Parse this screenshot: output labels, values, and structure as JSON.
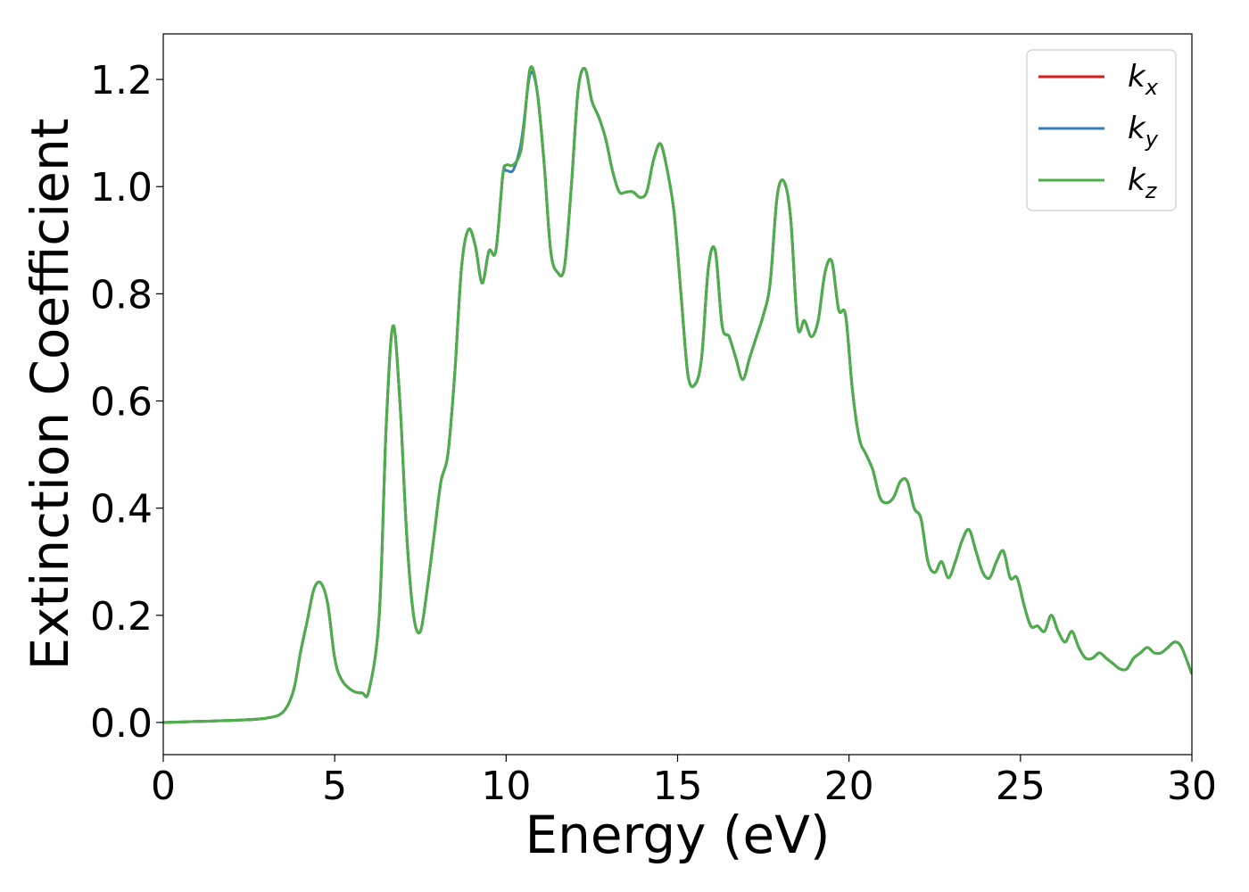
{
  "chart_data": {
    "type": "line",
    "xlabel": "Energy (eV)",
    "ylabel": "Extinction Coefficient",
    "xlim": [
      0,
      30
    ],
    "ylim": [
      -0.06,
      1.285
    ],
    "xticks": [
      0,
      5,
      10,
      15,
      20,
      25,
      30
    ],
    "xtick_labels": [
      "0",
      "5",
      "10",
      "15",
      "20",
      "25",
      "30"
    ],
    "yticks": [
      0.0,
      0.2,
      0.4,
      0.6,
      0.8,
      1.0,
      1.2
    ],
    "ytick_labels": [
      "0.0",
      "0.2",
      "0.4",
      "0.6",
      "0.8",
      "1.0",
      "1.2"
    ],
    "grid": false,
    "legend_position": "top-right",
    "series": [
      {
        "name": "k_x",
        "label_main": "k",
        "label_sub": "x",
        "color": "#e41a1c",
        "x": [
          0,
          1,
          2,
          3,
          3.5,
          3.8,
          4.0,
          4.2,
          4.4,
          4.6,
          4.8,
          5.0,
          5.2,
          5.5,
          5.8,
          6.0,
          6.3,
          6.5,
          6.7,
          6.9,
          7.1,
          7.3,
          7.5,
          7.7,
          7.9,
          8.1,
          8.3,
          8.5,
          8.7,
          8.9,
          9.1,
          9.3,
          9.5,
          9.7,
          9.9,
          10.0,
          10.2,
          10.4,
          10.5,
          10.7,
          10.9,
          11.1,
          11.3,
          11.5,
          11.7,
          11.9,
          12.1,
          12.3,
          12.5,
          12.7,
          12.9,
          13.1,
          13.3,
          13.5,
          13.7,
          13.9,
          14.1,
          14.3,
          14.5,
          14.7,
          14.9,
          15.1,
          15.3,
          15.5,
          15.7,
          15.9,
          16.1,
          16.3,
          16.5,
          16.7,
          16.9,
          17.1,
          17.3,
          17.5,
          17.7,
          17.9,
          18.1,
          18.3,
          18.5,
          18.7,
          18.9,
          19.1,
          19.3,
          19.5,
          19.7,
          19.9,
          20.1,
          20.3,
          20.5,
          20.7,
          20.9,
          21.1,
          21.3,
          21.5,
          21.7,
          21.9,
          22.1,
          22.3,
          22.5,
          22.7,
          22.9,
          23.1,
          23.3,
          23.5,
          23.7,
          23.9,
          24.1,
          24.3,
          24.5,
          24.7,
          24.9,
          25.1,
          25.3,
          25.5,
          25.7,
          25.9,
          26.1,
          26.3,
          26.5,
          26.7,
          26.9,
          27.1,
          27.3,
          27.5,
          27.7,
          27.9,
          28.1,
          28.3,
          28.5,
          28.7,
          28.9,
          29.1,
          29.3,
          29.5,
          29.7,
          30.0
        ],
        "y": [
          0,
          0.002,
          0.004,
          0.008,
          0.02,
          0.06,
          0.13,
          0.19,
          0.25,
          0.26,
          0.22,
          0.12,
          0.08,
          0.06,
          0.055,
          0.06,
          0.2,
          0.55,
          0.74,
          0.6,
          0.35,
          0.2,
          0.17,
          0.25,
          0.35,
          0.45,
          0.5,
          0.65,
          0.85,
          0.92,
          0.89,
          0.82,
          0.88,
          0.88,
          1.02,
          1.04,
          1.04,
          1.06,
          1.1,
          1.22,
          1.18,
          1.05,
          0.88,
          0.84,
          0.85,
          1.0,
          1.18,
          1.22,
          1.16,
          1.13,
          1.09,
          1.03,
          0.99,
          0.99,
          0.99,
          0.98,
          0.99,
          1.05,
          1.08,
          1.03,
          0.95,
          0.8,
          0.65,
          0.63,
          0.68,
          0.85,
          0.88,
          0.74,
          0.72,
          0.68,
          0.64,
          0.68,
          0.72,
          0.76,
          0.82,
          0.98,
          1.01,
          0.94,
          0.74,
          0.75,
          0.72,
          0.75,
          0.84,
          0.86,
          0.77,
          0.76,
          0.62,
          0.53,
          0.5,
          0.47,
          0.42,
          0.41,
          0.42,
          0.45,
          0.45,
          0.4,
          0.38,
          0.3,
          0.28,
          0.3,
          0.27,
          0.3,
          0.34,
          0.36,
          0.32,
          0.28,
          0.27,
          0.3,
          0.32,
          0.27,
          0.27,
          0.22,
          0.18,
          0.18,
          0.17,
          0.2,
          0.17,
          0.15,
          0.17,
          0.14,
          0.12,
          0.12,
          0.13,
          0.12,
          0.11,
          0.1,
          0.1,
          0.12,
          0.13,
          0.14,
          0.13,
          0.13,
          0.14,
          0.15,
          0.14,
          0.09
        ]
      },
      {
        "name": "k_y",
        "label_main": "k",
        "label_sub": "y",
        "color": "#377eb8",
        "x": [
          0,
          1,
          2,
          3,
          3.5,
          3.8,
          4.0,
          4.2,
          4.4,
          4.6,
          4.8,
          5.0,
          5.2,
          5.5,
          5.8,
          6.0,
          6.3,
          6.5,
          6.7,
          6.9,
          7.1,
          7.3,
          7.5,
          7.7,
          7.9,
          8.1,
          8.3,
          8.5,
          8.7,
          8.9,
          9.1,
          9.3,
          9.5,
          9.7,
          9.9,
          10.0,
          10.2,
          10.4,
          10.5,
          10.7,
          10.9,
          11.1,
          11.3,
          11.5,
          11.7,
          11.9,
          12.1,
          12.3,
          12.5,
          12.7,
          12.9,
          13.1,
          13.3,
          13.5,
          13.7,
          13.9,
          14.1,
          14.3,
          14.5,
          14.7,
          14.9,
          15.1,
          15.3,
          15.5,
          15.7,
          15.9,
          16.1,
          16.3,
          16.5,
          16.7,
          16.9,
          17.1,
          17.3,
          17.5,
          17.7,
          17.9,
          18.1,
          18.3,
          18.5,
          18.7,
          18.9,
          19.1,
          19.3,
          19.5,
          19.7,
          19.9,
          20.1,
          20.3,
          20.5,
          20.7,
          20.9,
          21.1,
          21.3,
          21.5,
          21.7,
          21.9,
          22.1,
          22.3,
          22.5,
          22.7,
          22.9,
          23.1,
          23.3,
          23.5,
          23.7,
          23.9,
          24.1,
          24.3,
          24.5,
          24.7,
          24.9,
          25.1,
          25.3,
          25.5,
          25.7,
          25.9,
          26.1,
          26.3,
          26.5,
          26.7,
          26.9,
          27.1,
          27.3,
          27.5,
          27.7,
          27.9,
          28.1,
          28.3,
          28.5,
          28.7,
          28.9,
          29.1,
          29.3,
          29.5,
          29.7,
          30.0
        ],
        "y": [
          0,
          0.002,
          0.004,
          0.008,
          0.02,
          0.06,
          0.13,
          0.19,
          0.25,
          0.26,
          0.22,
          0.12,
          0.08,
          0.06,
          0.055,
          0.06,
          0.2,
          0.55,
          0.74,
          0.6,
          0.35,
          0.2,
          0.17,
          0.25,
          0.35,
          0.45,
          0.5,
          0.65,
          0.85,
          0.92,
          0.89,
          0.82,
          0.88,
          0.88,
          1.02,
          1.03,
          1.03,
          1.07,
          1.11,
          1.21,
          1.18,
          1.05,
          0.88,
          0.84,
          0.85,
          1.0,
          1.18,
          1.22,
          1.16,
          1.13,
          1.09,
          1.03,
          0.99,
          0.99,
          0.99,
          0.98,
          0.99,
          1.05,
          1.08,
          1.03,
          0.95,
          0.8,
          0.65,
          0.63,
          0.68,
          0.85,
          0.88,
          0.74,
          0.72,
          0.68,
          0.64,
          0.68,
          0.72,
          0.76,
          0.82,
          0.98,
          1.01,
          0.94,
          0.74,
          0.75,
          0.72,
          0.75,
          0.84,
          0.86,
          0.77,
          0.76,
          0.62,
          0.53,
          0.5,
          0.47,
          0.42,
          0.41,
          0.42,
          0.45,
          0.45,
          0.4,
          0.38,
          0.3,
          0.28,
          0.3,
          0.27,
          0.3,
          0.34,
          0.36,
          0.32,
          0.28,
          0.27,
          0.3,
          0.32,
          0.27,
          0.27,
          0.22,
          0.18,
          0.18,
          0.17,
          0.2,
          0.17,
          0.15,
          0.17,
          0.14,
          0.12,
          0.12,
          0.13,
          0.12,
          0.11,
          0.1,
          0.1,
          0.12,
          0.13,
          0.14,
          0.13,
          0.13,
          0.14,
          0.15,
          0.14,
          0.09
        ]
      },
      {
        "name": "k_z",
        "label_main": "k",
        "label_sub": "z",
        "color": "#4daf4a",
        "x": [
          0,
          1,
          2,
          3,
          3.5,
          3.8,
          4.0,
          4.2,
          4.4,
          4.6,
          4.8,
          5.0,
          5.2,
          5.5,
          5.8,
          6.0,
          6.3,
          6.5,
          6.7,
          6.9,
          7.1,
          7.3,
          7.5,
          7.7,
          7.9,
          8.1,
          8.3,
          8.5,
          8.7,
          8.9,
          9.1,
          9.3,
          9.5,
          9.7,
          9.9,
          10.0,
          10.2,
          10.4,
          10.5,
          10.7,
          10.9,
          11.1,
          11.3,
          11.5,
          11.7,
          11.9,
          12.1,
          12.3,
          12.5,
          12.7,
          12.9,
          13.1,
          13.3,
          13.5,
          13.7,
          13.9,
          14.1,
          14.3,
          14.5,
          14.7,
          14.9,
          15.1,
          15.3,
          15.5,
          15.7,
          15.9,
          16.1,
          16.3,
          16.5,
          16.7,
          16.9,
          17.1,
          17.3,
          17.5,
          17.7,
          17.9,
          18.1,
          18.3,
          18.5,
          18.7,
          18.9,
          19.1,
          19.3,
          19.5,
          19.7,
          19.9,
          20.1,
          20.3,
          20.5,
          20.7,
          20.9,
          21.1,
          21.3,
          21.5,
          21.7,
          21.9,
          22.1,
          22.3,
          22.5,
          22.7,
          22.9,
          23.1,
          23.3,
          23.5,
          23.7,
          23.9,
          24.1,
          24.3,
          24.5,
          24.7,
          24.9,
          25.1,
          25.3,
          25.5,
          25.7,
          25.9,
          26.1,
          26.3,
          26.5,
          26.7,
          26.9,
          27.1,
          27.3,
          27.5,
          27.7,
          27.9,
          28.1,
          28.3,
          28.5,
          28.7,
          28.9,
          29.1,
          29.3,
          29.5,
          29.7,
          30.0
        ],
        "y": [
          0,
          0.002,
          0.004,
          0.008,
          0.02,
          0.06,
          0.13,
          0.19,
          0.25,
          0.26,
          0.22,
          0.12,
          0.08,
          0.06,
          0.055,
          0.06,
          0.2,
          0.55,
          0.74,
          0.6,
          0.35,
          0.2,
          0.17,
          0.25,
          0.35,
          0.45,
          0.5,
          0.65,
          0.85,
          0.92,
          0.89,
          0.82,
          0.88,
          0.88,
          1.02,
          1.04,
          1.04,
          1.06,
          1.1,
          1.22,
          1.18,
          1.05,
          0.88,
          0.84,
          0.85,
          1.0,
          1.18,
          1.22,
          1.16,
          1.13,
          1.09,
          1.03,
          0.99,
          0.99,
          0.99,
          0.98,
          0.99,
          1.05,
          1.08,
          1.03,
          0.95,
          0.8,
          0.65,
          0.63,
          0.68,
          0.85,
          0.88,
          0.74,
          0.72,
          0.68,
          0.64,
          0.68,
          0.72,
          0.76,
          0.82,
          0.98,
          1.01,
          0.94,
          0.74,
          0.75,
          0.72,
          0.75,
          0.84,
          0.86,
          0.77,
          0.76,
          0.62,
          0.53,
          0.5,
          0.47,
          0.42,
          0.41,
          0.42,
          0.45,
          0.45,
          0.4,
          0.38,
          0.3,
          0.28,
          0.3,
          0.27,
          0.3,
          0.34,
          0.36,
          0.32,
          0.28,
          0.27,
          0.3,
          0.32,
          0.27,
          0.27,
          0.22,
          0.18,
          0.18,
          0.17,
          0.2,
          0.17,
          0.15,
          0.17,
          0.14,
          0.12,
          0.12,
          0.13,
          0.12,
          0.11,
          0.1,
          0.1,
          0.12,
          0.13,
          0.14,
          0.13,
          0.13,
          0.14,
          0.15,
          0.14,
          0.09
        ]
      }
    ]
  }
}
